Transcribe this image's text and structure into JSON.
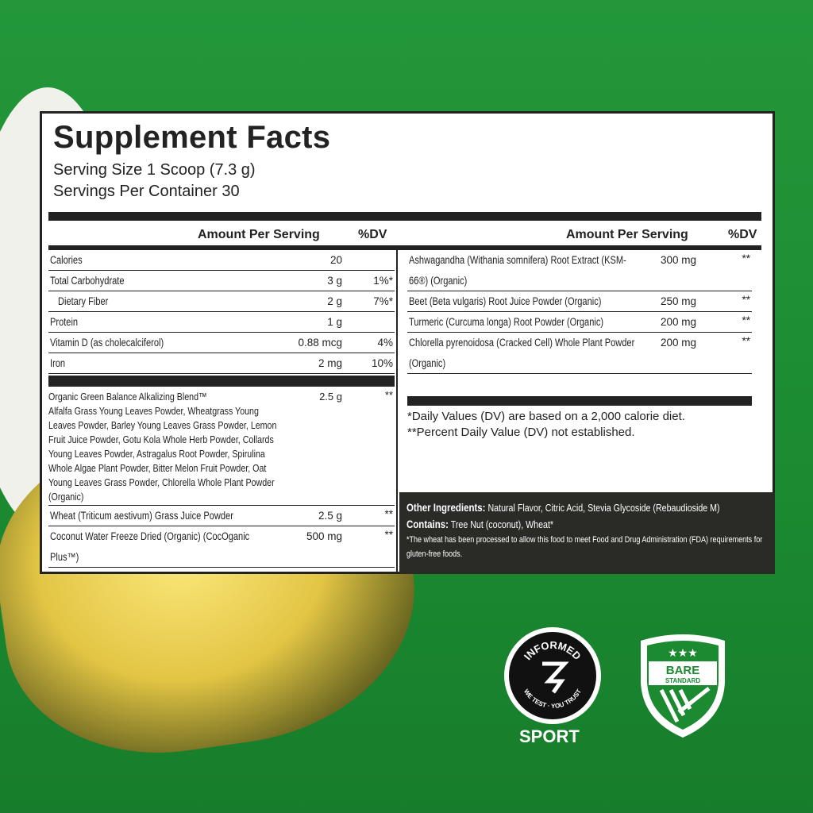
{
  "label": {
    "title": "Supplement Facts",
    "serving_size": "Serving Size 1 Scoop (7.3 g)",
    "servings_per_container": "Servings Per Container 30",
    "col_amount": "Amount Per Serving",
    "col_dv": "%DV",
    "left_rows": [
      {
        "name": "Calories",
        "amount": "20",
        "dv": ""
      },
      {
        "name": "Total Carbohydrate",
        "amount": "3 g",
        "dv": "1%*"
      },
      {
        "name": "Dietary Fiber",
        "amount": "2 g",
        "dv": "7%*"
      },
      {
        "name": "Protein",
        "amount": "1 g",
        "dv": ""
      },
      {
        "name": "Vitamin D (as cholecalciferol)",
        "amount": "0.88 mcg",
        "dv": "4%"
      },
      {
        "name": "Iron",
        "amount": "2 mg",
        "dv": "10%"
      }
    ],
    "blend": {
      "name": "Organic Green Balance Alkalizing Blend™",
      "ingredients": "Alfalfa Grass Young Leaves Powder, Wheatgrass Young Leaves Powder, Barley Young Leaves Grass Powder, Lemon Fruit Juice Powder, Gotu Kola Whole Herb Powder, Collards Young Leaves Powder, Astragalus Root Powder, Spirulina Whole Algae Plant Powder, Bitter Melon Fruit Powder, Oat Young Leaves Grass Powder, Chlorella Whole Plant Powder (Organic)",
      "amount": "2.5 g",
      "dv": "**"
    },
    "left_rows2": [
      {
        "name": "Wheat (Triticum aestivum) Grass Juice Powder",
        "amount": "2.5 g",
        "dv": "**"
      },
      {
        "name": "Coconut Water Freeze Dried (Organic) (CocOganic Plus™)",
        "amount": "500 mg",
        "dv": "**"
      }
    ],
    "right_rows": [
      {
        "name": "Ashwagandha (Withania somnifera) Root Extract (KSM-66®) (Organic)",
        "amount": "300 mg",
        "dv": "**"
      },
      {
        "name": "Beet (Beta vulgaris) Root Juice Powder (Organic)",
        "amount": "250 mg",
        "dv": "**"
      },
      {
        "name": "Turmeric (Curcuma longa) Root Powder (Organic)",
        "amount": "200 mg",
        "dv": "**"
      },
      {
        "name": "Chlorella pyrenoidosa (Cracked Cell) Whole Plant Powder (Organic)",
        "amount": "200 mg",
        "dv": "**"
      }
    ],
    "footnote1": "*Daily Values (DV) are based on a 2,000 calorie diet.",
    "footnote2": "**Percent Daily Value (DV) not established.",
    "other_label": "Other Ingredients:",
    "other_value": "Natural Flavor, Citric Acid, Stevia Glycoside (Rebaudioside M)",
    "contains_label": "Contains:",
    "contains_value": "Tree Nut (coconut), Wheat*",
    "wheat_note": "*The wheat has been processed to allow this food to meet Food and Drug Administration (FDA) requirements for gluten-free foods."
  },
  "badges": {
    "informed_top": "INFORMED",
    "informed_bottom": "WE TEST · YOU TRUST",
    "informed_sport": "SPORT",
    "bare_text": "BARE",
    "bare_text2": "STANDARD"
  },
  "colors": {
    "background": "#1f8f35",
    "label_dark": "#2a2a26"
  }
}
